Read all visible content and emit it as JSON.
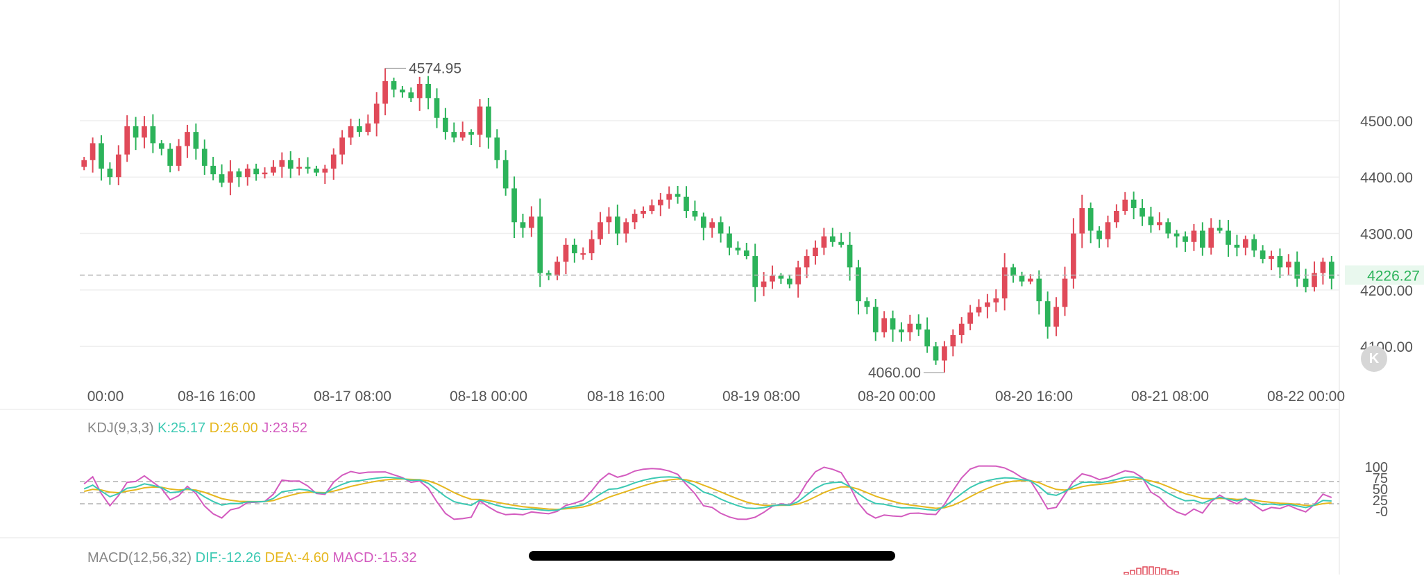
{
  "chart_data": [
    {
      "type": "candlestick",
      "name": "price",
      "y_ticks": [
        "4500.00",
        "4400.00",
        "4300.00",
        "4200.00",
        "4100.00"
      ],
      "ylim": [
        4040,
        4640
      ],
      "x_ticks": [
        "00:00",
        "08-16 16:00",
        "08-17 08:00",
        "08-18 00:00",
        "08-18 16:00",
        "08-19 08:00",
        "08-20 00:00",
        "08-20 16:00",
        "08-21 08:00",
        "08-22 00:00"
      ],
      "current_price": "4226.27",
      "max_label": "4574.95",
      "min_label": "4060.00",
      "colors": {
        "up": "#e04a59",
        "down": "#2cb35a",
        "current": "#2cb35a"
      },
      "close": [
        4430,
        4460,
        4415,
        4400,
        4440,
        4490,
        4470,
        4490,
        4460,
        4450,
        4420,
        4455,
        4480,
        4450,
        4420,
        4405,
        4390,
        4410,
        4400,
        4415,
        4405,
        4408,
        4418,
        4430,
        4415,
        4418,
        4415,
        4408,
        4415,
        4440,
        4470,
        4490,
        4480,
        4495,
        4530,
        4570,
        4555,
        4550,
        4540,
        4565,
        4540,
        4505,
        4480,
        4470,
        4480,
        4475,
        4525,
        4470,
        4430,
        4380,
        4320,
        4310,
        4330,
        4230,
        4225,
        4250,
        4280,
        4265,
        4265,
        4290,
        4320,
        4330,
        4300,
        4320,
        4335,
        4340,
        4350,
        4360,
        4370,
        4365,
        4340,
        4330,
        4310,
        4320,
        4300,
        4275,
        4270,
        4260,
        4205,
        4215,
        4225,
        4220,
        4210,
        4240,
        4260,
        4275,
        4295,
        4285,
        4280,
        4240,
        4180,
        4170,
        4125,
        4150,
        4130,
        4125,
        4140,
        4130,
        4100,
        4075,
        4100,
        4120,
        4140,
        4160,
        4170,
        4178,
        4185,
        4240,
        4225,
        4215,
        4220,
        4180,
        4135,
        4170,
        4220,
        4300,
        4345,
        4305,
        4290,
        4320,
        4340,
        4360,
        4345,
        4330,
        4315,
        4320,
        4300,
        4295,
        4285,
        4305,
        4275,
        4310,
        4305,
        4280,
        4275,
        4290,
        4270,
        4255,
        4260,
        4240,
        4250,
        4220,
        4205,
        4230,
        4250,
        4220
      ],
      "kdj_title": "KDJ(9,3,3)",
      "kdj_values": {
        "K": "K:25.17",
        "D": "D:26.00",
        "J": "J:23.52"
      },
      "kdj_ticks": [
        "100",
        "75",
        "50",
        "25",
        "-0"
      ],
      "macd_title": "MACD(12,56,32)",
      "macd_values": {
        "DIF": "DIF:-12.26",
        "DEA": "DEA:-4.60",
        "MACD": "MACD:-15.32"
      },
      "indicator_colors": {
        "K": "#3cc9b3",
        "D": "#e6b71e",
        "J": "#d35bbf"
      }
    }
  ]
}
